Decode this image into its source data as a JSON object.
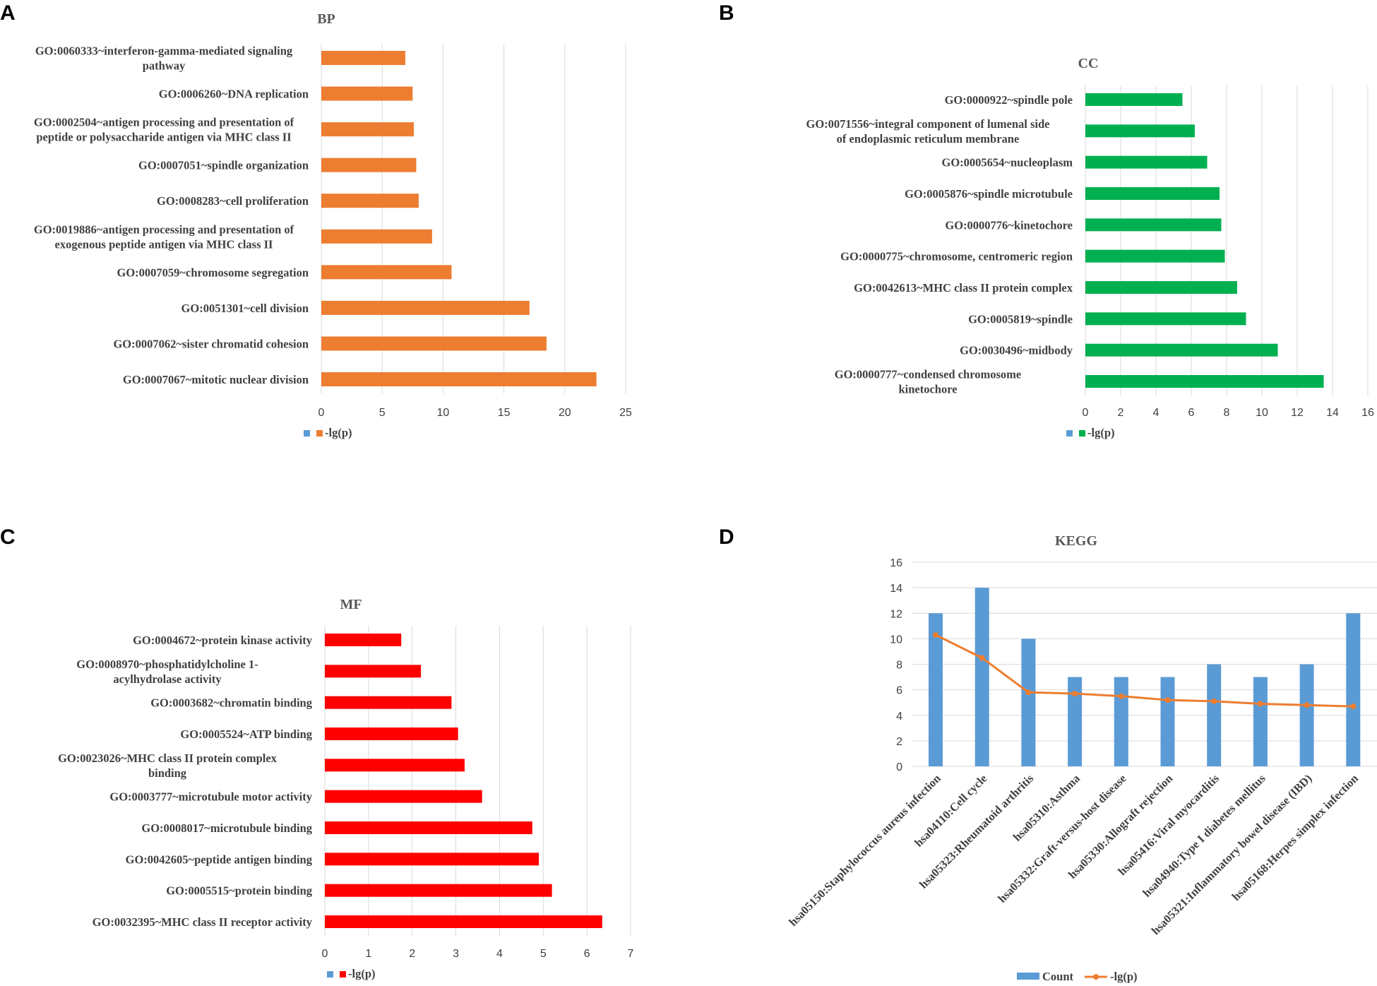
{
  "chart_data": [
    {
      "panel": "A",
      "type": "bar",
      "orientation": "horizontal",
      "title": "BP",
      "color": "#ED7D31",
      "legend_marker_color": "#5B9BD5",
      "legend": "-lg(p)",
      "categories": [
        [
          "GO:0060333~interferon-gamma-mediated signaling",
          "pathway"
        ],
        [
          "GO:0006260~DNA replication"
        ],
        [
          "GO:0002504~antigen processing and presentation of",
          "peptide or polysaccharide antigen via MHC class II"
        ],
        [
          "GO:0007051~spindle organization"
        ],
        [
          "GO:0008283~cell proliferation"
        ],
        [
          "GO:0019886~antigen processing and presentation of",
          "exogenous peptide antigen via MHC class II"
        ],
        [
          "GO:0007059~chromosome segregation"
        ],
        [
          "GO:0051301~cell division"
        ],
        [
          "GO:0007062~sister chromatid cohesion"
        ],
        [
          "GO:0007067~mitotic nuclear division"
        ]
      ],
      "values": [
        6.9,
        7.5,
        7.6,
        7.8,
        8.0,
        9.1,
        10.7,
        17.1,
        18.5,
        22.6
      ],
      "xlim": [
        0,
        25
      ],
      "ticks": [
        "0",
        "5",
        "10",
        "15",
        "20",
        "25"
      ]
    },
    {
      "panel": "B",
      "type": "bar",
      "orientation": "horizontal",
      "title": "CC",
      "color": "#00B050",
      "legend_marker_color": "#5B9BD5",
      "legend": "-lg(p)",
      "categories": [
        [
          "GO:0000922~spindle pole"
        ],
        [
          "GO:0071556~integral component of lumenal side",
          "of endoplasmic reticulum membrane"
        ],
        [
          "GO:0005654~nucleoplasm"
        ],
        [
          "GO:0005876~spindle microtubule"
        ],
        [
          "GO:0000776~kinetochore"
        ],
        [
          "GO:0000775~chromosome, centromeric region"
        ],
        [
          "GO:0042613~MHC class II protein complex"
        ],
        [
          "GO:0005819~spindle"
        ],
        [
          "GO:0030496~midbody"
        ],
        [
          "GO:0000777~condensed chromosome",
          "kinetochore"
        ]
      ],
      "values": [
        5.5,
        6.2,
        6.9,
        7.6,
        7.7,
        7.9,
        8.6,
        9.1,
        10.9,
        13.5
      ],
      "xlim": [
        0,
        16
      ],
      "ticks": [
        "0",
        "2",
        "4",
        "6",
        "8",
        "10",
        "12",
        "14",
        "16"
      ]
    },
    {
      "panel": "C",
      "type": "bar",
      "orientation": "horizontal",
      "title": "MF",
      "color": "#FF0000",
      "legend_marker_color": "#5B9BD5",
      "legend": "-lg(p)",
      "categories": [
        [
          "GO:0004672~protein kinase activity"
        ],
        [
          "GO:0008970~phosphatidylcholine 1-",
          "acylhydrolase activity"
        ],
        [
          "GO:0003682~chromatin binding"
        ],
        [
          "GO:0005524~ATP binding"
        ],
        [
          "GO:0023026~MHC class II protein complex",
          "binding"
        ],
        [
          "GO:0003777~microtubule motor activity"
        ],
        [
          "GO:0008017~microtubule binding"
        ],
        [
          "GO:0042605~peptide antigen binding"
        ],
        [
          "GO:0005515~protein binding"
        ],
        [
          "GO:0032395~MHC class II receptor activity"
        ]
      ],
      "values": [
        1.75,
        2.2,
        2.9,
        3.05,
        3.2,
        3.6,
        4.75,
        4.9,
        5.2,
        6.35
      ],
      "xlim": [
        0,
        7
      ],
      "ticks": [
        "0",
        "1",
        "2",
        "3",
        "4",
        "5",
        "6",
        "7"
      ]
    },
    {
      "panel": "D",
      "type": "bar+line",
      "title": "KEGG",
      "categories": [
        "hsa05150:Staphylococcus aureus infection",
        "hsa04110:Cell cycle",
        "hsa05323:Rheumatoid arthritis",
        "hsa05310:Asthma",
        "hsa05332:Graft-versus-host disease",
        "hsa05330:Allograft rejection",
        "hsa05416:Viral myocarditis",
        "hsa04940:Type I diabetes mellitus",
        "hsa05321:Inflammatory bowel disease (IBD)",
        "hsa05168:Herpes simplex infection"
      ],
      "series": [
        {
          "name": "Count",
          "kind": "bar",
          "color": "#5B9BD5",
          "values": [
            12,
            14,
            10,
            7,
            7,
            7,
            8,
            7,
            8,
            12
          ]
        },
        {
          "name": "-lg(p)",
          "kind": "line",
          "color": "#ED7D31",
          "values": [
            10.3,
            8.5,
            5.8,
            5.7,
            5.5,
            5.2,
            5.1,
            4.9,
            4.8,
            4.7
          ]
        }
      ],
      "ylim": [
        0,
        16
      ],
      "ticks": [
        "0",
        "2",
        "4",
        "6",
        "8",
        "10",
        "12",
        "14",
        "16"
      ]
    }
  ]
}
